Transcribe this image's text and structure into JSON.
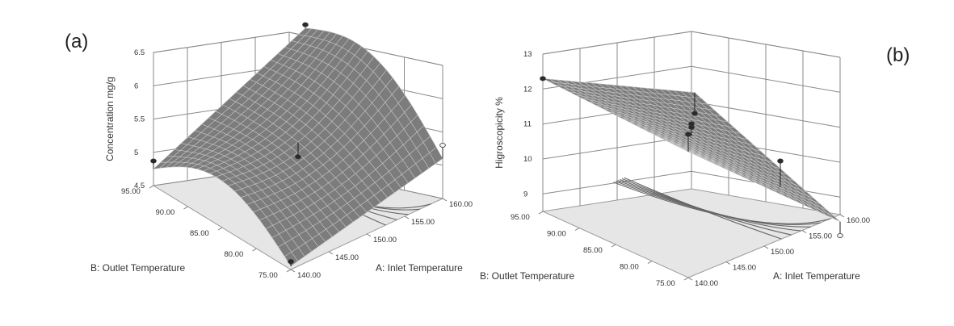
{
  "chart_data": [
    {
      "type": "surface3d",
      "panel_label": "(a)",
      "xlabel": "A: Inlet Temperature",
      "ylabel": "B: Outlet Temperature",
      "zlabel": "Concentration mg/g",
      "xticks": [
        "140.00",
        "145.00",
        "150.00",
        "155.00",
        "160.00"
      ],
      "yticks": [
        "75.00",
        "80.00",
        "85.00",
        "90.00",
        "95.00"
      ],
      "zticks": [
        "4.5",
        "5",
        "5.5",
        "6",
        "6.5"
      ],
      "xlim": [
        140,
        160
      ],
      "ylim": [
        75,
        95
      ],
      "zlim": [
        4.5,
        6.5
      ],
      "surface_corners": {
        "A140_B75": 4.55,
        "A160_B75": 5.1,
        "A140_B95": 4.75,
        "A160_B95": 5.8,
        "center": 5.05,
        "shape": "saddle"
      },
      "design_points": [
        {
          "A": 140,
          "B": 95,
          "z": 4.87,
          "above": true
        },
        {
          "A": 140,
          "B": 75,
          "z": 4.62,
          "above": true
        },
        {
          "A": 160,
          "B": 75,
          "z": 5.3,
          "above": false
        },
        {
          "A": 160,
          "B": 95,
          "z": 5.85,
          "above": true
        },
        {
          "A": 150,
          "B": 85,
          "z": 5.03,
          "above": true
        }
      ],
      "floor_contours": 5
    },
    {
      "type": "surface3d",
      "panel_label": "(b)",
      "xlabel": "A: Inlet Temperature",
      "ylabel": "B: Outlet Temperature",
      "zlabel": "Higroscopicity %",
      "xticks": [
        "140.00",
        "145.00",
        "150.00",
        "155.00",
        "160.00"
      ],
      "yticks": [
        "75.00",
        "80.00",
        "85.00",
        "90.00",
        "95.00"
      ],
      "zticks": [
        "9",
        "10",
        "11",
        "12",
        "13"
      ],
      "xlim": [
        140,
        160
      ],
      "ylim": [
        75,
        95
      ],
      "zlim": [
        8.5,
        13
      ],
      "surface_corners": {
        "A140_B95": 12.3,
        "A140_B75": 12.1,
        "A160_B75": 8.3,
        "A160_B95": 10.1,
        "shape": "plane"
      },
      "design_points": [
        {
          "A": 140,
          "B": 95,
          "z": 12.3,
          "above": true
        },
        {
          "A": 140,
          "B": 75,
          "z": 12.6,
          "above": true
        },
        {
          "A": 150,
          "B": 85,
          "z": 11.05,
          "above": true
        },
        {
          "A": 150,
          "B": 85,
          "z": 10.95,
          "above": true
        },
        {
          "A": 160,
          "B": 75,
          "z": 7.9,
          "above": false
        },
        {
          "A": 160,
          "B": 95,
          "z": 9.5,
          "above": true
        },
        {
          "A": 155,
          "B": 78,
          "z": 10.2,
          "above": true
        }
      ],
      "floor_contours": 6
    }
  ]
}
